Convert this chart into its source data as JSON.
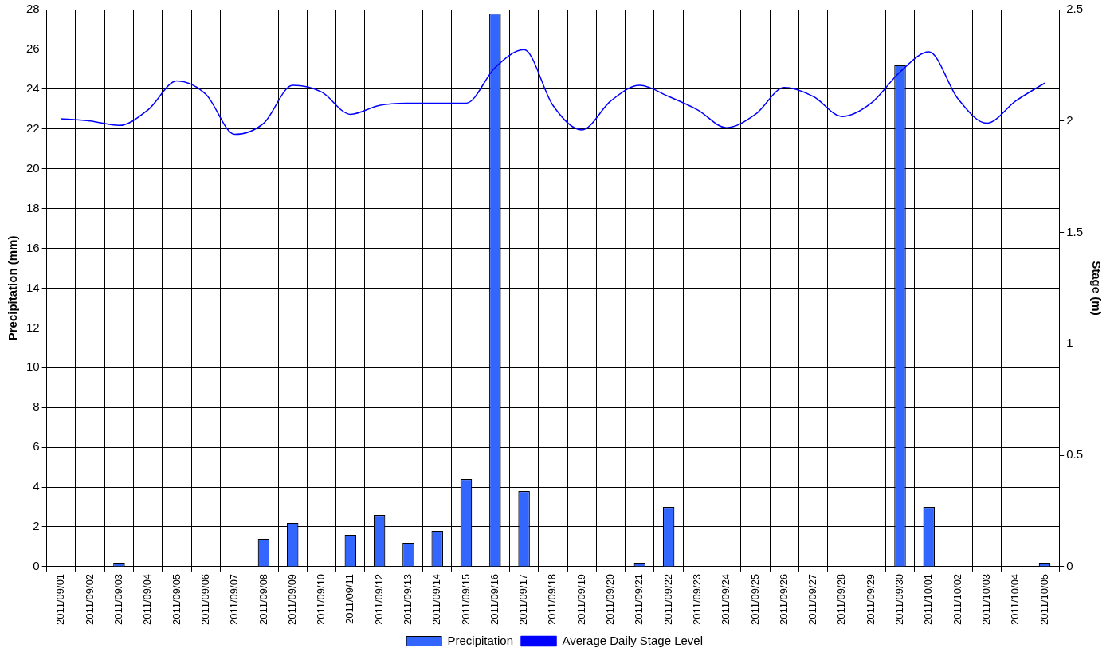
{
  "chart_data": {
    "type": "bar",
    "ylabel": "Precipitation (mm)",
    "y2label": "Stage (m)",
    "categories": [
      "2011/09/01",
      "2011/09/02",
      "2011/09/03",
      "2011/09/04",
      "2011/09/05",
      "2011/09/06",
      "2011/09/07",
      "2011/09/08",
      "2011/09/09",
      "2011/09/10",
      "2011/09/11",
      "2011/09/12",
      "2011/09/13",
      "2011/09/14",
      "2011/09/15",
      "2011/09/16",
      "2011/09/17",
      "2011/09/18",
      "2011/09/19",
      "2011/09/20",
      "2011/09/21",
      "2011/09/22",
      "2011/09/23",
      "2011/09/24",
      "2011/09/25",
      "2011/09/26",
      "2011/09/27",
      "2011/09/28",
      "2011/09/29",
      "2011/09/30",
      "2011/10/01",
      "2011/10/02",
      "2011/10/03",
      "2011/10/04",
      "2011/10/05"
    ],
    "series": [
      {
        "name": "Precipitation",
        "color": "#3366ff",
        "values": [
          0,
          0,
          0.2,
          0,
          0,
          0,
          0,
          1.4,
          2.2,
          0,
          1.6,
          2.6,
          1.2,
          1.8,
          4.4,
          27.8,
          3.8,
          0,
          0,
          0,
          0.2,
          3.0,
          0,
          0,
          0,
          0,
          0,
          0,
          0,
          25.2,
          3.0,
          0,
          0,
          0,
          0.2
        ]
      },
      {
        "name": "Average Daily Stage Level",
        "type": "line",
        "axis": "y2",
        "color": "#0000ff",
        "values": [
          2.01,
          2.0,
          1.98,
          2.05,
          2.18,
          2.12,
          1.94,
          1.99,
          2.16,
          2.13,
          2.03,
          2.07,
          2.08,
          2.08,
          2.08,
          2.24,
          2.32,
          2.07,
          1.96,
          2.09,
          2.16,
          2.11,
          2.05,
          1.97,
          2.03,
          2.15,
          2.11,
          2.02,
          2.08,
          2.22,
          2.31,
          2.1,
          1.99,
          2.09,
          2.17
        ]
      }
    ],
    "ylim": [
      0,
      28
    ],
    "yticks": [
      0,
      2,
      4,
      6,
      8,
      10,
      12,
      14,
      16,
      18,
      20,
      22,
      24,
      26,
      28
    ],
    "y2lim": [
      0,
      2.5
    ],
    "y2ticks": [
      0,
      0.5,
      1,
      1.5,
      2,
      2.5
    ],
    "grid": true,
    "legend": "bottom",
    "marker": "none"
  }
}
